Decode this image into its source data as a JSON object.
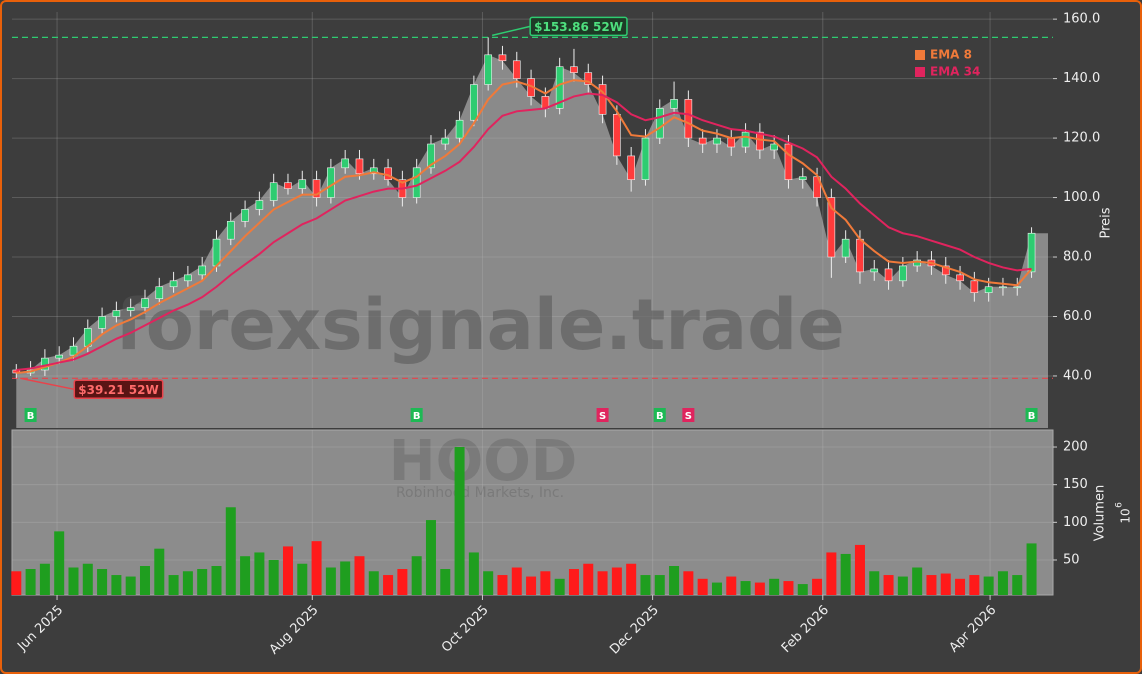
{
  "chart_data": [
    {
      "type": "candlestick",
      "watermark": "forexsignale.trade",
      "ylabel": "Preis",
      "grid": true,
      "legend": "upper right",
      "xlim": [
        -0.3,
        72.5
      ],
      "ylim": [
        22.5,
        162.4
      ],
      "yticks": [
        {
          "value": 40,
          "label": "40.0"
        },
        {
          "value": 60,
          "label": "60.0"
        },
        {
          "value": 80,
          "label": "80.0"
        },
        {
          "value": 100,
          "label": "100.0"
        },
        {
          "value": 120,
          "label": "120.0"
        },
        {
          "value": 140,
          "label": "140.0"
        },
        {
          "value": 160,
          "label": "160.0"
        }
      ],
      "up_color": "#2ecc71",
      "down_color": "#ff3b3b",
      "area_color": "#8a8a8a",
      "open": [
        42,
        41,
        42,
        46,
        47,
        50,
        56,
        60,
        62,
        63,
        66,
        70,
        72,
        74,
        77,
        86,
        92,
        96,
        99,
        105,
        103,
        106,
        100,
        110,
        113,
        108,
        110,
        106,
        100,
        110,
        118,
        120,
        126,
        138,
        148,
        146,
        140,
        134,
        130,
        144,
        142,
        138,
        128,
        114,
        106,
        120,
        130,
        133,
        120,
        118,
        120,
        117,
        122,
        116,
        118,
        106,
        107,
        100,
        80,
        86,
        75,
        76,
        72,
        77,
        79,
        77,
        74,
        72,
        68,
        70,
        70,
        75
      ],
      "high": [
        44,
        45,
        49,
        50,
        53,
        59,
        63,
        65,
        66,
        69,
        73,
        75,
        77,
        80,
        89,
        95,
        99,
        102,
        108,
        108,
        109,
        109,
        113,
        116,
        116,
        113,
        113,
        109,
        113,
        121,
        123,
        129,
        141,
        153.86,
        151,
        149,
        143,
        137,
        147,
        150,
        145,
        141,
        131,
        117,
        123,
        133,
        139,
        136,
        123,
        123,
        123,
        125,
        125,
        121,
        121,
        110,
        110,
        103,
        89,
        89,
        79,
        79,
        80,
        82,
        82,
        80,
        77,
        75,
        73,
        73,
        73,
        90
      ],
      "low": [
        39.21,
        40,
        40,
        44,
        45,
        48,
        54,
        58,
        60,
        61,
        64,
        68,
        70,
        72,
        75,
        84,
        90,
        94,
        97,
        101,
        101,
        97,
        98,
        108,
        106,
        106,
        104,
        97,
        98,
        108,
        116,
        118,
        124,
        136,
        143,
        137,
        131,
        127,
        128,
        139,
        135,
        125,
        111,
        102,
        104,
        118,
        128,
        117,
        115,
        115,
        114,
        115,
        113,
        113,
        103,
        103,
        97,
        73,
        78,
        71,
        72,
        69,
        70,
        75,
        74,
        71,
        69,
        65,
        65,
        67,
        67,
        73
      ],
      "close": [
        41,
        42,
        46,
        47,
        50,
        56,
        60,
        62,
        63,
        66,
        70,
        72,
        74,
        77,
        86,
        92,
        96,
        99,
        105,
        103,
        106,
        100,
        110,
        113,
        108,
        110,
        106,
        100,
        110,
        118,
        120,
        126,
        138,
        148,
        146,
        140,
        134,
        130,
        144,
        142,
        138,
        128,
        114,
        106,
        120,
        130,
        133,
        120,
        118,
        120,
        117,
        122,
        116,
        118,
        106,
        107,
        100,
        80,
        86,
        75,
        76,
        72,
        77,
        79,
        77,
        74,
        72,
        68,
        70,
        70,
        70,
        88
      ],
      "series": [
        {
          "name": "EMA 8",
          "color": "#f07a3a",
          "values": [
            41,
            41.5,
            43,
            44.5,
            46.5,
            50,
            54,
            57,
            59,
            61.5,
            64.5,
            67,
            69.5,
            72,
            77,
            82,
            87,
            91.5,
            96,
            98.5,
            101,
            101,
            104,
            107,
            107.5,
            108.5,
            107.5,
            105,
            107,
            111,
            114,
            118,
            125,
            133,
            138,
            139,
            137.5,
            135,
            138,
            139.5,
            139,
            135.5,
            129,
            121,
            120.5,
            123.5,
            127,
            125,
            122.5,
            121.5,
            120,
            120.5,
            119.5,
            119,
            114.5,
            111.5,
            107.5,
            96.5,
            92.5,
            86,
            82,
            78.5,
            78,
            78.5,
            78,
            76.5,
            75,
            72.5,
            71.5,
            71,
            70.5,
            76
          ]
        },
        {
          "name": "EMA 34",
          "color": "#e0245e",
          "values": [
            42,
            42.5,
            43.5,
            44.5,
            45.5,
            47.5,
            50,
            52.5,
            54.5,
            57,
            59.5,
            62,
            64,
            66.5,
            70,
            74,
            77.5,
            81,
            85,
            88,
            91,
            93,
            96,
            99,
            100.5,
            102,
            103,
            103,
            104,
            106.5,
            109,
            112,
            117,
            123,
            127.5,
            129,
            129.5,
            130,
            132,
            134,
            135,
            134.5,
            132,
            128,
            126,
            127,
            128.5,
            128,
            126,
            124.5,
            123,
            122.5,
            121.5,
            120.5,
            118.5,
            116.5,
            113.5,
            107,
            103,
            98,
            94,
            90,
            88,
            87,
            85.5,
            84,
            82.5,
            80,
            78,
            76.5,
            75.5,
            76
          ]
        }
      ],
      "annotations": [
        {
          "x": 33,
          "value": 153.86,
          "label": "$153.86 52W",
          "color": "#2ecc71"
        },
        {
          "x": 0,
          "value": 39.21,
          "label": "$39.21 52W",
          "color": "#e8434b"
        }
      ],
      "signals": [
        {
          "x": 1,
          "label": "B",
          "color": "#1db954"
        },
        {
          "x": 28,
          "label": "B",
          "color": "#1db954"
        },
        {
          "x": 41,
          "label": "S",
          "color": "#e0245e"
        },
        {
          "x": 45,
          "label": "B",
          "color": "#1db954"
        },
        {
          "x": 47,
          "label": "S",
          "color": "#e0245e"
        },
        {
          "x": 71,
          "label": "B",
          "color": "#1db954"
        }
      ]
    },
    {
      "type": "bar",
      "watermark": "HOOD",
      "subtitle": "Robinhood Markets, Inc.",
      "ylabel": "Volumen",
      "ylabel_unit_base": "10",
      "ylabel_unit_exponent": "6",
      "up_color": "#1f9e1f",
      "down_color": "#ff1a1a",
      "xlim": [
        -0.3,
        72.5
      ],
      "ylim": [
        3.5,
        222.6
      ],
      "yticks": [
        50,
        100,
        150,
        200
      ],
      "xticks": [
        {
          "value": 2.85,
          "label": "Jun 2025"
        },
        {
          "value": 20.7,
          "label": "Aug 2025"
        },
        {
          "value": 32.6,
          "label": "Oct 2025"
        },
        {
          "value": 44.5,
          "label": "Dec 2025"
        },
        {
          "value": 56.4,
          "label": "Feb 2026"
        },
        {
          "value": 68.1,
          "label": "Apr 2026"
        }
      ],
      "values": [
        35,
        38,
        45,
        88,
        40,
        45,
        38,
        30,
        28,
        42,
        65,
        30,
        35,
        38,
        42,
        120,
        55,
        60,
        50,
        68,
        45,
        75,
        40,
        48,
        55,
        35,
        30,
        38,
        55,
        103,
        38,
        200,
        60,
        35,
        30,
        40,
        28,
        35,
        25,
        38,
        45,
        35,
        40,
        45,
        30,
        30,
        42,
        35,
        25,
        20,
        28,
        22,
        20,
        25,
        22,
        18,
        25,
        60,
        58,
        70,
        35,
        30,
        28,
        40,
        30,
        32,
        25,
        30,
        28,
        35,
        30,
        72
      ]
    }
  ]
}
